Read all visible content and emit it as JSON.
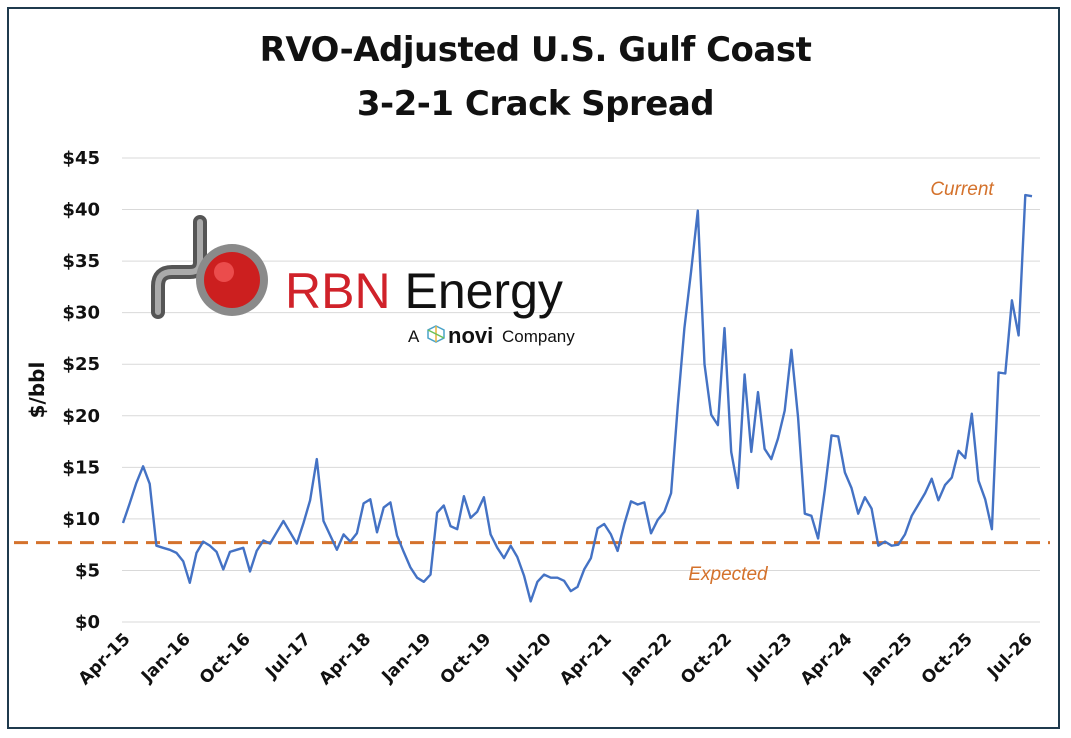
{
  "chart_data": {
    "type": "line",
    "title": "RVO-Adjusted U.S. Gulf Coast",
    "subtitle": "3-2-1 Crack Spread",
    "xlabel": "",
    "ylabel": "$/bbl",
    "ylim": [
      0,
      45
    ],
    "y_ticks": [
      "$0",
      "$5",
      "$10",
      "$15",
      "$20",
      "$25",
      "$30",
      "$35",
      "$40",
      "$45"
    ],
    "x_tick_labels": [
      "Apr-15",
      "Jan-16",
      "Oct-16",
      "Jul-17",
      "Apr-18",
      "Jan-19",
      "Oct-19",
      "Jul-20",
      "Apr-21",
      "Jan-22",
      "Oct-22",
      "Jul-23",
      "Apr-24",
      "Jan-25",
      "Oct-25",
      "Jul-26"
    ],
    "grid": "horizontal",
    "series": [
      {
        "color": "#4472c4",
        "x": [
          "2015-04",
          "2015-05",
          "2015-06",
          "2015-07",
          "2015-08",
          "2015-09",
          "2015-10",
          "2015-11",
          "2015-12",
          "2016-01",
          "2016-02",
          "2016-03",
          "2016-04",
          "2016-05",
          "2016-06",
          "2016-07",
          "2016-08",
          "2016-09",
          "2016-10",
          "2016-11",
          "2016-12",
          "2017-01",
          "2017-02",
          "2017-03",
          "2017-04",
          "2017-05",
          "2017-06",
          "2017-07",
          "2017-08",
          "2017-09",
          "2017-10",
          "2017-11",
          "2017-12",
          "2018-01",
          "2018-02",
          "2018-03",
          "2018-04",
          "2018-05",
          "2018-06",
          "2018-07",
          "2018-08",
          "2018-09",
          "2018-10",
          "2018-11",
          "2018-12",
          "2019-01",
          "2019-02",
          "2019-03",
          "2019-04",
          "2019-05",
          "2019-06",
          "2019-07",
          "2019-08",
          "2019-09",
          "2019-10",
          "2019-11",
          "2019-12",
          "2020-01",
          "2020-02",
          "2020-03",
          "2020-04",
          "2020-05",
          "2020-06",
          "2020-07",
          "2020-08",
          "2020-09",
          "2020-10",
          "2020-11",
          "2020-12",
          "2021-01",
          "2021-02",
          "2021-03",
          "2021-04",
          "2021-05",
          "2021-06",
          "2021-07",
          "2021-08",
          "2021-09",
          "2021-10",
          "2021-11",
          "2021-12",
          "2022-01",
          "2022-02",
          "2022-03",
          "2022-04",
          "2022-05",
          "2022-06",
          "2022-07",
          "2022-08",
          "2022-09",
          "2022-10",
          "2022-11",
          "2022-12",
          "2023-01",
          "2023-02",
          "2023-03",
          "2023-04",
          "2023-05",
          "2023-06",
          "2023-07",
          "2023-08",
          "2023-09",
          "2023-10",
          "2023-11",
          "2023-12",
          "2024-01",
          "2024-02",
          "2024-03",
          "2024-04",
          "2024-05",
          "2024-06",
          "2024-07",
          "2024-08",
          "2024-09",
          "2024-10",
          "2024-11",
          "2024-12",
          "2025-01",
          "2025-02",
          "2025-03",
          "2025-04",
          "2025-05",
          "2025-06",
          "2025-07",
          "2025-08",
          "2025-09",
          "2025-10",
          "2025-11",
          "2025-12",
          "2026-01",
          "2026-02",
          "2026-03",
          "2026-04",
          "2026-05",
          "2026-06",
          "2026-07",
          "2026-08"
        ],
        "values": [
          9.6,
          11.5,
          13.5,
          15.1,
          13.4,
          7.4,
          7.2,
          7.0,
          6.7,
          5.9,
          3.8,
          6.7,
          7.8,
          7.4,
          6.8,
          5.1,
          6.8,
          7.0,
          7.2,
          4.9,
          6.9,
          7.9,
          7.6,
          8.7,
          9.8,
          8.7,
          7.6,
          9.6,
          11.8,
          15.8,
          9.8,
          8.4,
          7.0,
          8.5,
          7.8,
          8.6,
          11.5,
          11.9,
          8.7,
          11.1,
          11.6,
          8.4,
          6.8,
          5.3,
          4.3,
          3.9,
          4.6,
          10.6,
          11.3,
          9.3,
          9.0,
          12.2,
          10.1,
          10.7,
          12.1,
          8.5,
          7.2,
          6.2,
          7.4,
          6.3,
          4.5,
          2.0,
          3.9,
          4.6,
          4.3,
          4.3,
          4.0,
          3.0,
          3.4,
          5.1,
          6.2,
          9.1,
          9.5,
          8.5,
          6.9,
          9.5,
          11.7,
          11.4,
          11.6,
          8.6,
          9.9,
          10.7,
          12.5,
          21.0,
          28.5,
          34.0,
          39.9,
          25.0,
          20.1,
          19.1,
          28.5,
          16.5,
          13.0,
          24.0,
          16.5,
          22.3,
          16.8,
          15.8,
          17.8,
          20.5,
          26.4,
          19.8,
          10.5,
          10.3,
          8.1,
          12.8,
          18.1,
          18.0,
          14.5,
          13.0,
          10.5,
          12.1,
          11.0,
          7.4,
          7.8,
          7.4,
          7.5,
          8.5,
          10.3,
          11.4,
          12.5,
          13.9,
          11.8,
          13.3,
          14.0,
          16.6,
          15.9,
          20.2,
          13.7,
          11.9,
          9.0,
          24.2,
          24.1,
          31.2,
          27.8,
          41.4,
          41.3
        ]
      }
    ],
    "reference_line": {
      "value": 7.7,
      "color": "#d4722c"
    },
    "annotations": {
      "current": "Current",
      "expected": "Expected"
    }
  },
  "logo": {
    "brand_red": "RBN",
    "brand_dark": " Energy",
    "sub_prefix": "A",
    "sub_brand": "novi",
    "sub_suffix": "Company"
  },
  "colors": {
    "line": "#4472c4",
    "reference": "#d4722c",
    "logo_red": "#d0222a",
    "frame": "#1f3a4d"
  }
}
